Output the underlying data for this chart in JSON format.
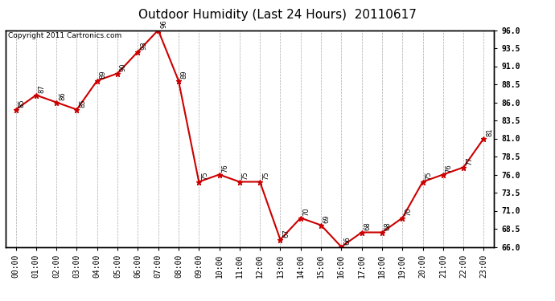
{
  "title": "Outdoor Humidity (Last 24 Hours)  20110617",
  "copyright_text": "Copyright 2011 Cartronics.com",
  "x_labels": [
    "00:00",
    "01:00",
    "02:00",
    "03:00",
    "04:00",
    "05:00",
    "06:00",
    "07:00",
    "08:00",
    "09:00",
    "10:00",
    "11:00",
    "12:00",
    "13:00",
    "14:00",
    "15:00",
    "16:00",
    "17:00",
    "18:00",
    "19:00",
    "20:00",
    "21:00",
    "22:00",
    "23:00"
  ],
  "y_values": [
    85,
    87,
    86,
    85,
    89,
    90,
    93,
    96,
    89,
    75,
    76,
    75,
    75,
    67,
    70,
    69,
    66,
    68,
    68,
    70,
    75,
    76,
    77,
    81
  ],
  "line_color": "#cc0000",
  "marker_color": "#cc0000",
  "marker_style": "*",
  "marker_size": 5,
  "line_width": 1.5,
  "ylim": [
    66.0,
    96.0
  ],
  "yticks_right": [
    66.0,
    68.5,
    71.0,
    73.5,
    76.0,
    78.5,
    81.0,
    83.5,
    86.0,
    88.5,
    91.0,
    93.5,
    96.0
  ],
  "background_color": "#ffffff",
  "plot_bg_color": "#ffffff",
  "grid_color": "#aaaaaa",
  "title_fontsize": 11,
  "label_fontsize": 7,
  "annotation_fontsize": 6,
  "copyright_fontsize": 6.5
}
